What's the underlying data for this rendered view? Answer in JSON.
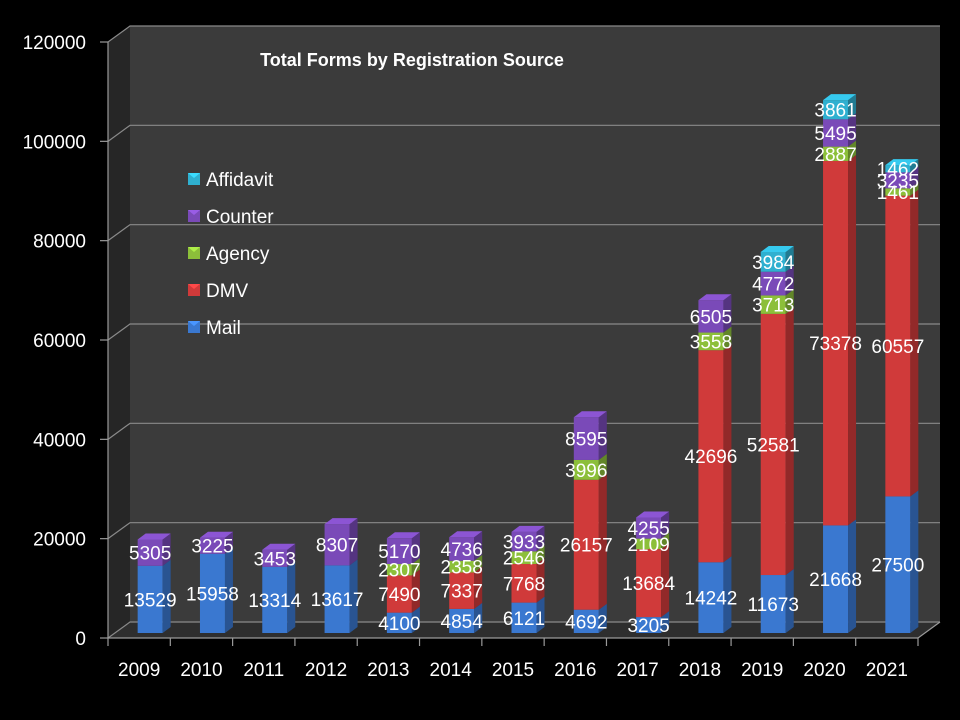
{
  "chart_data": {
    "type": "bar",
    "stacked": true,
    "style": "3d",
    "title": "Total Forms by Registration Source",
    "xlabel": "",
    "ylabel": "",
    "ylim": [
      0,
      120000
    ],
    "yticks": [
      0,
      20000,
      40000,
      60000,
      80000,
      100000,
      120000
    ],
    "grid": true,
    "legend_position": "top-left (inside plot)",
    "categories": [
      "2009",
      "2010",
      "2011",
      "2012",
      "2013",
      "2014",
      "2015",
      "2016",
      "2017",
      "2018",
      "2019",
      "2020",
      "2021"
    ],
    "series": [
      {
        "name": "Mail",
        "color": "#3a78d0",
        "values": [
          13529,
          15958,
          13314,
          13617,
          4100,
          4854,
          6121,
          4692,
          3205,
          14242,
          11673,
          21668,
          27500
        ]
      },
      {
        "name": "DMV",
        "color": "#d03a3a",
        "values": [
          null,
          null,
          null,
          null,
          7490,
          7337,
          7768,
          26157,
          13684,
          42696,
          52581,
          73378,
          60557
        ]
      },
      {
        "name": "Agency",
        "color": "#8cbf3a",
        "values": [
          null,
          null,
          null,
          null,
          2307,
          2358,
          2546,
          3996,
          2109,
          3558,
          3713,
          2887,
          1461
        ]
      },
      {
        "name": "Counter",
        "color": "#7a4ab8",
        "values": [
          5305,
          3225,
          3453,
          8307,
          5170,
          4736,
          3933,
          8595,
          4255,
          6505,
          4772,
          5495,
          3235
        ]
      },
      {
        "name": "Affidavit",
        "color": "#2fb0d0",
        "values": [
          null,
          null,
          null,
          null,
          null,
          null,
          null,
          null,
          null,
          null,
          3984,
          3861,
          1462
        ]
      }
    ],
    "legend_order": [
      "Affidavit",
      "Counter",
      "Agency",
      "DMV",
      "Mail"
    ]
  }
}
